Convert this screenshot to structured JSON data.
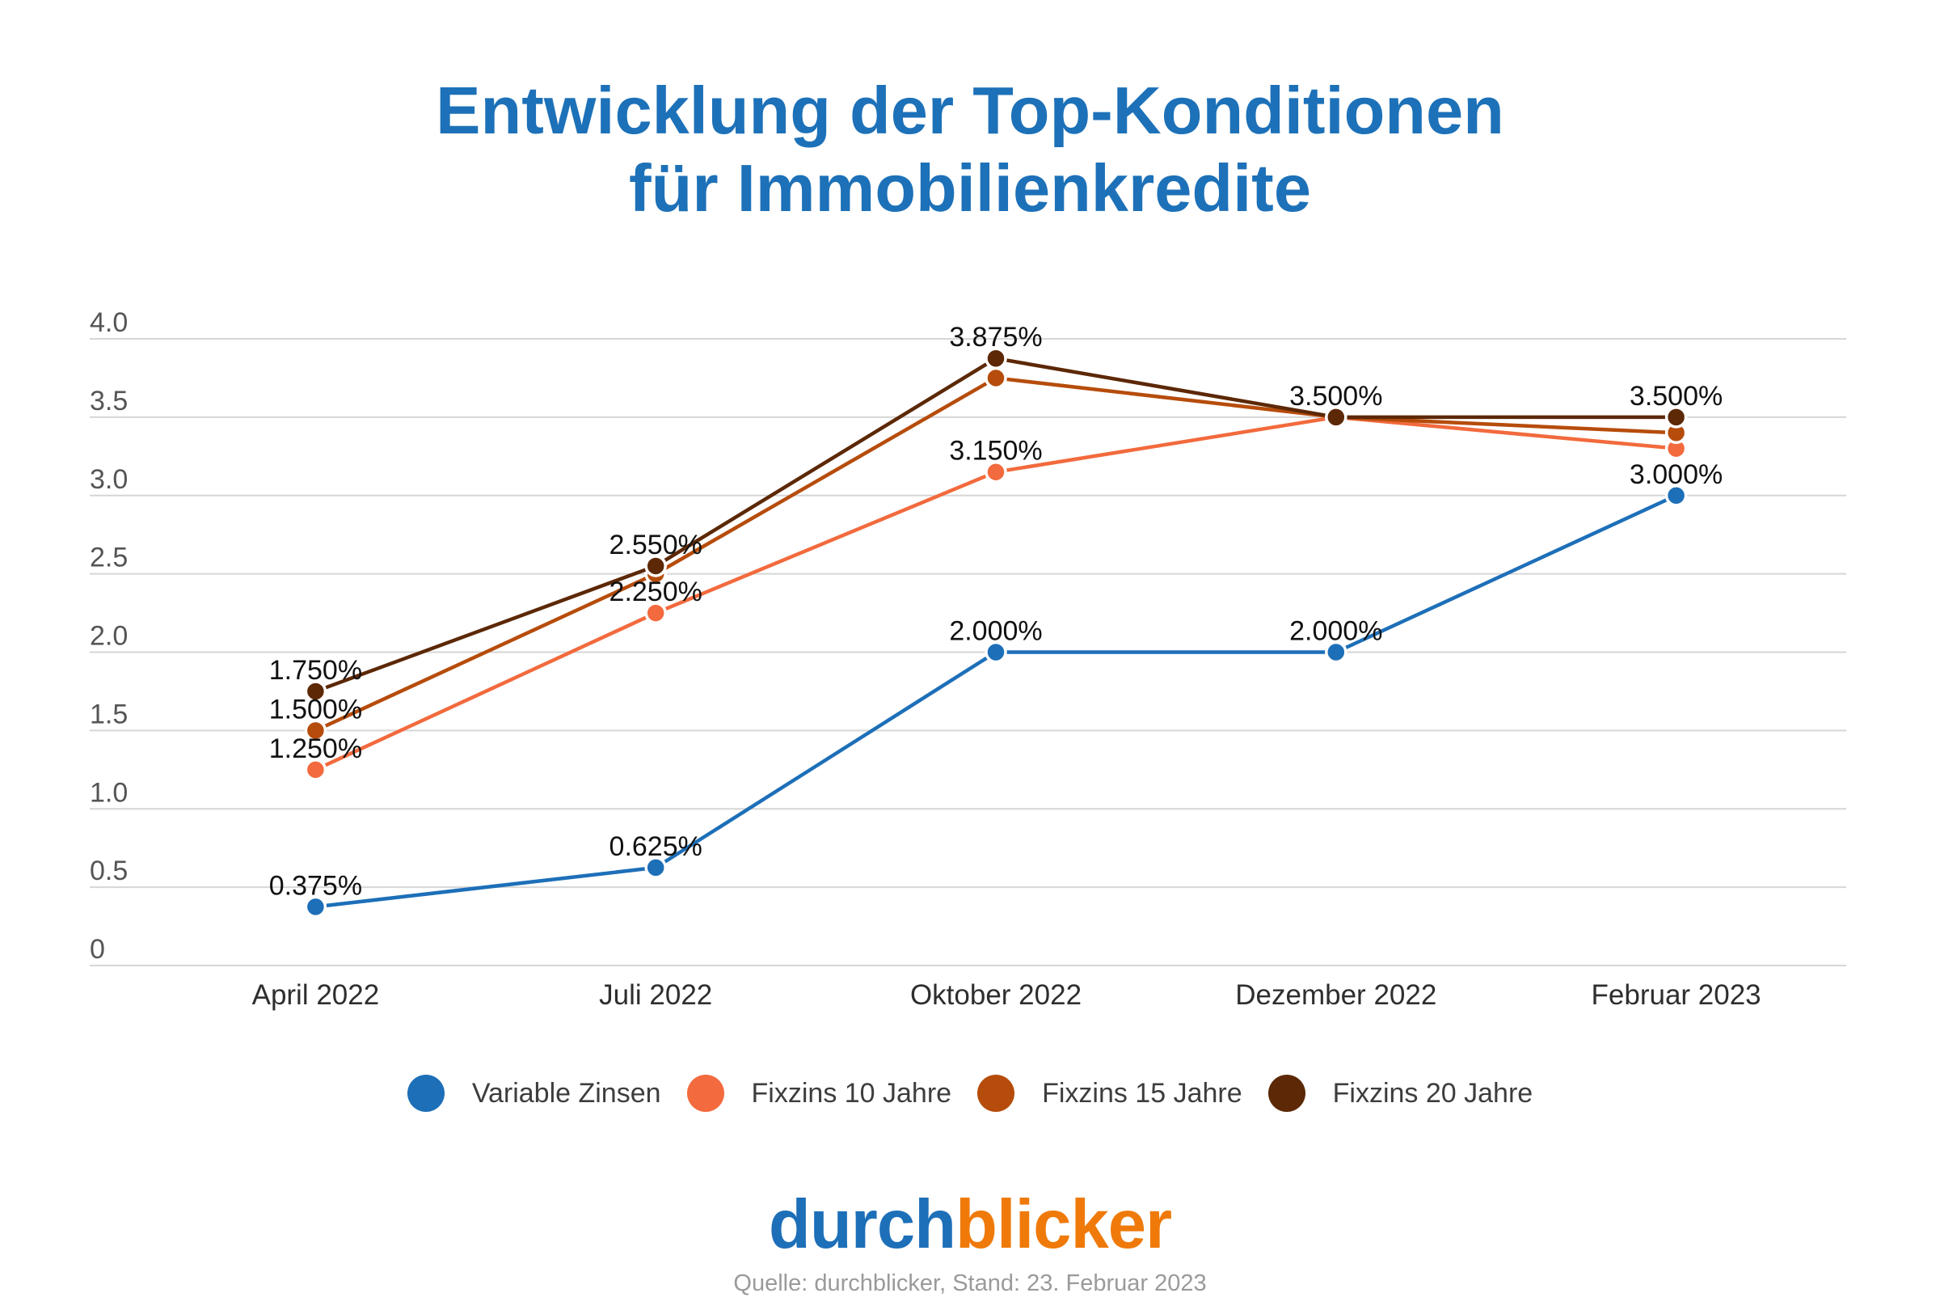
{
  "chart_data": {
    "type": "line",
    "title_lines": [
      "Entwicklung der Top-Konditionen",
      "für Immobilienkredite"
    ],
    "categories": [
      "April 2022",
      "Juli 2022",
      "Oktober 2022",
      "Dezember 2022",
      "Februar 2023"
    ],
    "ylim": [
      0,
      4
    ],
    "y_ticks": [
      0,
      0.5,
      1,
      1.5,
      2,
      2.5,
      3,
      3.5,
      4
    ],
    "y_tick_labels": [
      "0",
      "0.5",
      "1.0",
      "1.5",
      "2.0",
      "2.5",
      "3.0",
      "3.5",
      "4.0"
    ],
    "grid": true,
    "legend_position": "bottom",
    "series": [
      {
        "name": "Variable Zinsen",
        "color": "#1d6fb8",
        "values": [
          0.375,
          0.625,
          2.0,
          2.0,
          3.0
        ],
        "labels": [
          "0.375%",
          "0.625%",
          "2.000%",
          "2.000%",
          "3.000%"
        ]
      },
      {
        "name": "Fixzins 10 Jahre",
        "color": "#f26a3d",
        "values": [
          1.25,
          2.25,
          3.15,
          3.5,
          3.3
        ],
        "labels": [
          "1.250%",
          "2.250%",
          "3.150%",
          null,
          null
        ]
      },
      {
        "name": "Fixzins 15 Jahre",
        "color": "#b64c0b",
        "values": [
          1.5,
          2.5,
          3.75,
          3.5,
          3.4
        ],
        "labels": [
          "1.500%",
          null,
          null,
          null,
          null
        ]
      },
      {
        "name": "Fixzins 20 Jahre",
        "color": "#5c2806",
        "values": [
          1.75,
          2.55,
          3.875,
          3.5,
          3.5
        ],
        "labels": [
          "1.750%",
          "2.550%",
          "3.875%",
          "3.500%",
          "3.500%"
        ]
      }
    ]
  },
  "colors": {
    "title": "#1d71b8",
    "logo_primary": "#1d6fb8",
    "logo_accent": "#ef7a0a"
  },
  "logo": {
    "part1": "durch",
    "part2": "blicker"
  },
  "footer": {
    "source": "Quelle: durchblicker, Stand: 23. Februar 2023"
  }
}
